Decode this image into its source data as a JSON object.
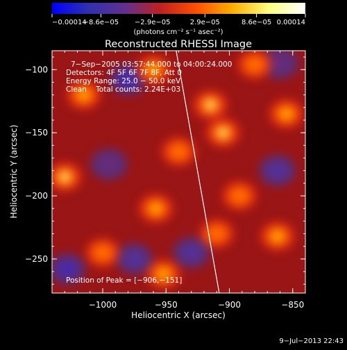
{
  "chart_data": {
    "type": "heatmap",
    "title": "Reconstructed RHESSI Image",
    "xlabel": "Heliocentric X (arcsec)",
    "ylabel": "Heliocentric Y (arcsec)",
    "xlim": [
      -1040,
      -840
    ],
    "ylim": [
      -277,
      -85
    ],
    "x_ticks": [
      -1000,
      -950,
      -900,
      -850
    ],
    "x_tick_labels": [
      "−1000",
      "−950",
      "−900",
      "−850"
    ],
    "y_ticks": [
      -100,
      -150,
      -200,
      -250
    ],
    "y_tick_labels": [
      "−100",
      "−150",
      "−200",
      "−250"
    ],
    "colorbar": {
      "range": [
        -0.00014,
        0.00014
      ],
      "ticks": [
        -0.00014,
        -8.6e-05,
        -2.9e-05,
        2.9e-05,
        8.6e-05,
        0.00014
      ],
      "tick_labels": [
        "−0.00014",
        "−8.6e−05",
        "−2.9e−05",
        "2.9e−05",
        "8.6e−05",
        "0.00014"
      ],
      "units": "(photons cm⁻² s⁻¹ asec⁻²)",
      "colors": [
        "#0000ff",
        "#3030b0",
        "#603090",
        "#c02020",
        "#ff5000",
        "#ffb000",
        "#ffff80",
        "#ffffff"
      ]
    },
    "annotations": [
      "7−Sep−2005 03:57:44.000 to 04:00:24.000",
      "Detectors: 4F 5F 6F 7F 8F, Att 0",
      "Energy Range: 25.0 − 50.0 keV",
      "Clean    Total counts: 2.24E+03"
    ],
    "peak_label": "Position of Peak = [−906,−151]",
    "peak": [
      -906,
      -151
    ],
    "limb_line": [
      [
        -942,
        -85
      ],
      [
        -908,
        -277
      ]
    ],
    "timestamp": "9−Jul−2013 22:43",
    "hot_spots": [
      {
        "x": -960,
        "y": -100,
        "v": 0.6
      },
      {
        "x": -915,
        "y": -128,
        "v": 0.7
      },
      {
        "x": -1030,
        "y": -185,
        "v": 0.75
      },
      {
        "x": -1015,
        "y": -120,
        "v": 0.6
      },
      {
        "x": -958,
        "y": -210,
        "v": 0.55
      },
      {
        "x": -905,
        "y": -150,
        "v": 0.75
      },
      {
        "x": -910,
        "y": -230,
        "v": 0.5
      },
      {
        "x": -855,
        "y": -135,
        "v": 0.65
      },
      {
        "x": -862,
        "y": -232,
        "v": 0.6
      },
      {
        "x": -1000,
        "y": -245,
        "v": 0.45
      },
      {
        "x": -952,
        "y": -262,
        "v": 0.55
      },
      {
        "x": -892,
        "y": -200,
        "v": 0.45
      },
      {
        "x": -880,
        "y": -96,
        "v": 0.5
      },
      {
        "x": -940,
        "y": -165,
        "v": 0.4
      }
    ],
    "cold_spots": [
      {
        "x": -980,
        "y": -108,
        "v": -0.6
      },
      {
        "x": -1028,
        "y": -258,
        "v": -0.65
      },
      {
        "x": -995,
        "y": -175,
        "v": -0.35
      },
      {
        "x": -975,
        "y": -250,
        "v": -0.45
      },
      {
        "x": -862,
        "y": -180,
        "v": -0.5
      },
      {
        "x": -860,
        "y": -95,
        "v": -0.35
      },
      {
        "x": -930,
        "y": -245,
        "v": -0.4
      }
    ]
  }
}
